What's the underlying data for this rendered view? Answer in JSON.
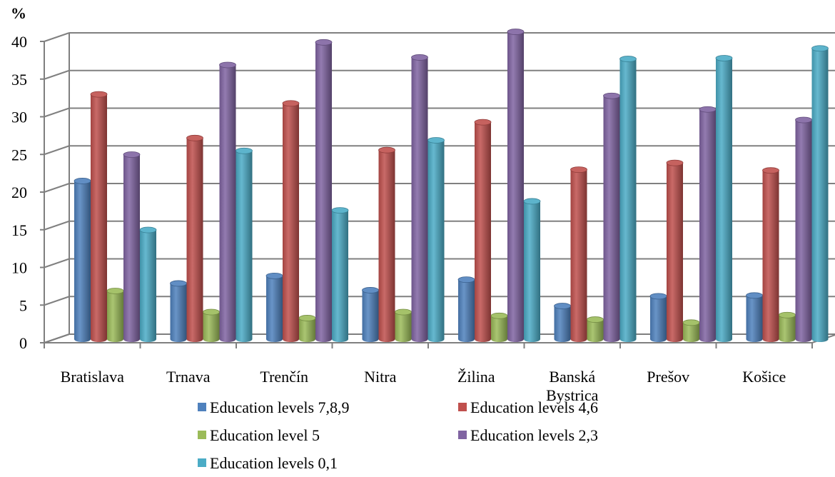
{
  "chart_data": {
    "type": "bar",
    "unit_label": "%",
    "categories": [
      "Bratislava",
      "Trnava",
      "Trenčín",
      "Nitra",
      "Žilina",
      "Banská Bystrica",
      "Prešov",
      "Košice"
    ],
    "series": [
      {
        "name": "Education levels 7,8,9",
        "color": "#4F81BD",
        "values": [
          21,
          7.4,
          8.4,
          6.5,
          7.9,
          4.4,
          5.7,
          5.8
        ]
      },
      {
        "name": "Education levels 4,6",
        "color": "#C0504D",
        "values": [
          32.5,
          26.7,
          31.3,
          25.1,
          28.8,
          22.5,
          23.4,
          22.4
        ]
      },
      {
        "name": "Education level 5",
        "color": "#9BBB59",
        "values": [
          6.4,
          3.6,
          2.8,
          3.6,
          3.1,
          2.6,
          2.2,
          3.2
        ]
      },
      {
        "name": "Education levels 2,3",
        "color": "#8064A2",
        "values": [
          24.5,
          36.4,
          39.4,
          37.4,
          40.8,
          32.3,
          30.5,
          29.1
        ]
      },
      {
        "name": "Education levels 0,1",
        "color": "#4BACC6",
        "values": [
          14.5,
          25,
          17.1,
          26.4,
          18.3,
          37.2,
          37.3,
          38.6
        ]
      }
    ],
    "ylim": [
      0,
      40
    ],
    "yticks": [
      0,
      5,
      10,
      15,
      20,
      25,
      30,
      35,
      40
    ],
    "grid": true,
    "legend_position": "bottom"
  }
}
